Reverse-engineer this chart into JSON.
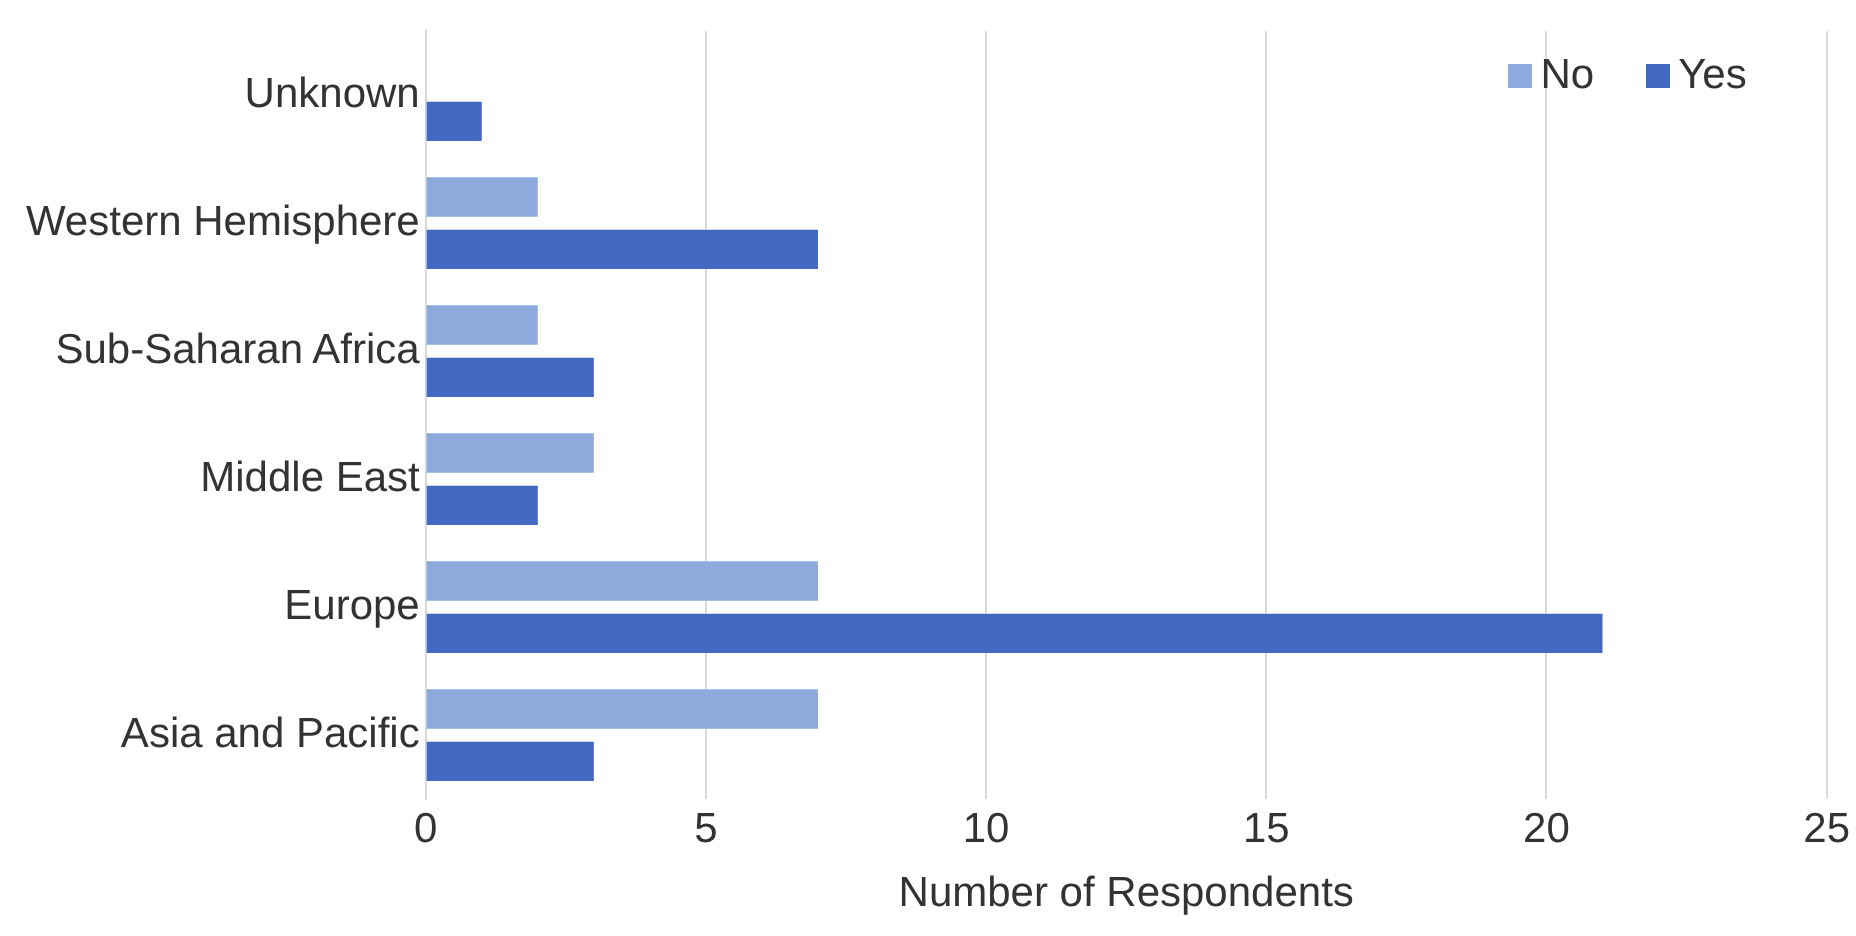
{
  "chart_data": {
    "type": "bar",
    "orientation": "horizontal",
    "xlabel": "Number of Respondents",
    "categories": [
      "Unknown",
      "Western Hemisphere",
      "Sub-Saharan Africa",
      "Middle East",
      "Europe",
      "Asia and Pacific"
    ],
    "series": [
      {
        "name": "No",
        "color": "#8eaadc",
        "values": [
          0,
          2,
          2,
          3,
          7,
          7
        ]
      },
      {
        "name": "Yes",
        "color": "#4169c0",
        "values": [
          1,
          7,
          3,
          2,
          21,
          3
        ]
      }
    ],
    "xlim": [
      0,
      25
    ],
    "xticks": [
      0,
      5,
      10,
      15,
      20,
      25
    ],
    "grid": "x",
    "legend": "top right"
  }
}
